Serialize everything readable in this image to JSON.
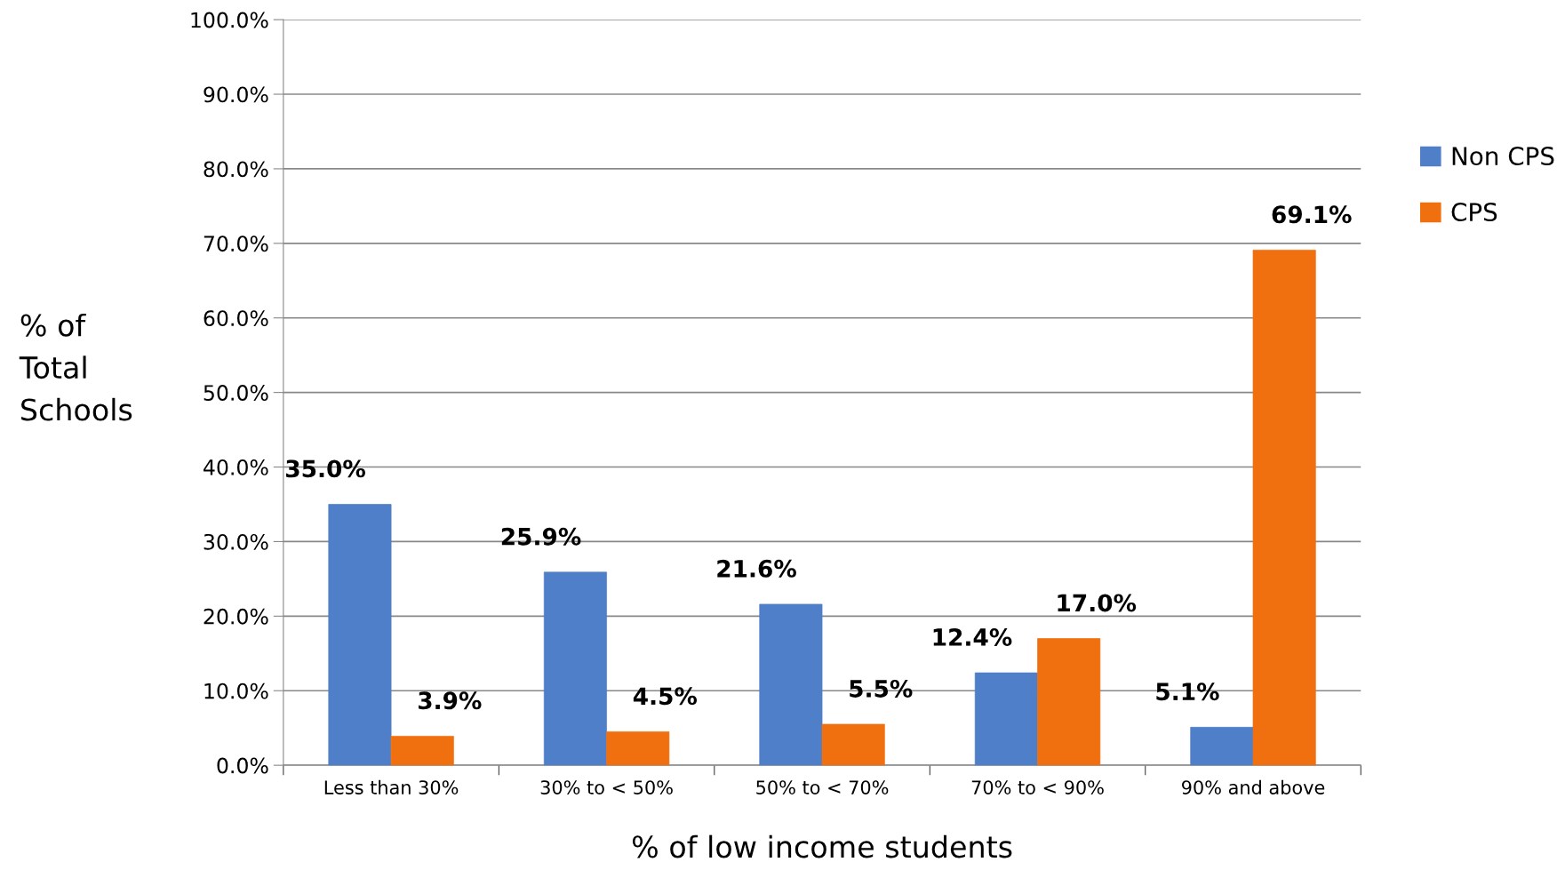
{
  "chart_data": {
    "type": "bar",
    "xlabel": "% of low income students",
    "ylabel": "% of\nTotal\nSchools",
    "categories": [
      "Less than 30%",
      "30% to < 50%",
      "50% to < 70%",
      "70% to < 90%",
      "90% and above"
    ],
    "series": [
      {
        "name": "Non CPS",
        "color": "#4f7fc8",
        "values": [
          35.0,
          25.9,
          21.6,
          12.4,
          5.1
        ],
        "value_labels": [
          "35.0%",
          "25.9%",
          "21.6%",
          "12.4%",
          "5.1%"
        ]
      },
      {
        "name": "CPS",
        "color": "#f0700f",
        "values": [
          3.9,
          4.5,
          5.5,
          17.0,
          69.1
        ],
        "value_labels": [
          "3.9%",
          "4.5%",
          "5.5%",
          "17.0%",
          "69.1%"
        ]
      }
    ],
    "ylim": [
      0,
      100
    ],
    "yticks": [
      {
        "value": 0,
        "label": "0.0%"
      },
      {
        "value": 10,
        "label": "10.0%"
      },
      {
        "value": 20,
        "label": "20.0%"
      },
      {
        "value": 30,
        "label": "30.0%"
      },
      {
        "value": 40,
        "label": "40.0%"
      },
      {
        "value": 50,
        "label": "50.0%"
      },
      {
        "value": 60,
        "label": "60.0%"
      },
      {
        "value": 70,
        "label": "70.0%"
      },
      {
        "value": 80,
        "label": "80.0%"
      },
      {
        "value": 90,
        "label": "90.0%"
      },
      {
        "value": 100,
        "label": "100.0%"
      }
    ],
    "grid": "y",
    "legend": "top right"
  }
}
